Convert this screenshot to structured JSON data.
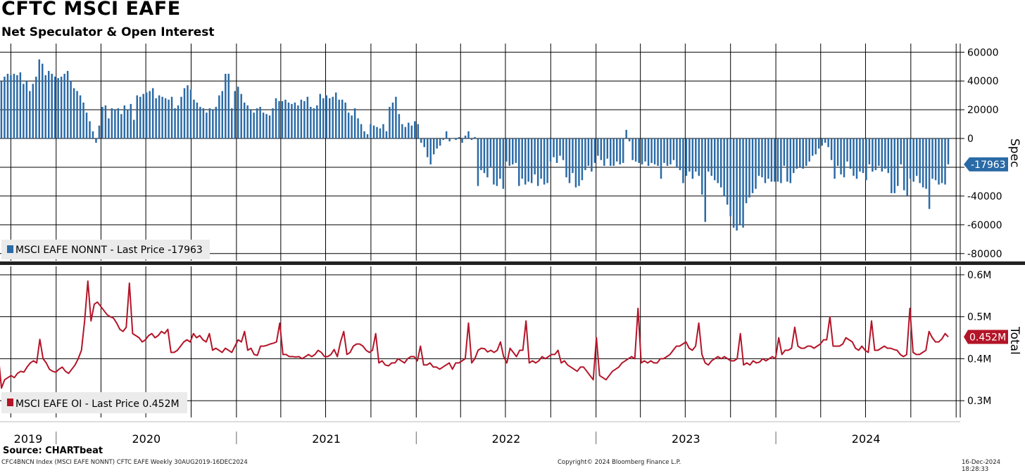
{
  "header": {
    "title": "CFTC MSCI EAFE",
    "subtitle": "Net Speculator & Open Interest"
  },
  "footer": {
    "source": "Source: CHARTbeat",
    "left": "CFC4BNCN Index (MSCI EAFE NONNT) CFTC EAFE  Weekly 30AUG2019-16DEC2024",
    "center": "Copyright© 2024 Bloomberg Finance L.P.",
    "right": "16-Dec-2024 18:28:33"
  },
  "colors": {
    "spec_bar": "#2a6aa6",
    "oi_line": "#b41428",
    "grid": "#000000",
    "legend_bg": "#ebebeb",
    "spec_badge": "#2a6aa6",
    "oi_badge": "#b41428"
  },
  "chart_data": [
    {
      "type": "bar",
      "panel": "top",
      "axis_title": "Spec",
      "legend": "MSCI EAFE NONNT - Last Price -17963",
      "last_value_label": "-17963",
      "ylim": [
        -85000,
        66000
      ],
      "yticks": [
        60000,
        40000,
        20000,
        0,
        -20000,
        -40000,
        -60000,
        -80000
      ],
      "ytick_labels": [
        "60000",
        "40000",
        "20000",
        "0",
        "-20000",
        "-40000",
        "-60000",
        "-80000"
      ],
      "frequency": "weekly",
      "x_start": "2019-08-30",
      "x_end": "2024-12-16",
      "values": [
        40000,
        42000,
        40000,
        43000,
        45000,
        44000,
        45000,
        44000,
        46000,
        38000,
        40000,
        33000,
        38000,
        43000,
        55000,
        52000,
        44000,
        47000,
        45000,
        43000,
        42000,
        43000,
        45000,
        47000,
        40000,
        35000,
        33000,
        30000,
        25000,
        18000,
        12000,
        5000,
        -3000,
        9000,
        22000,
        23000,
        14000,
        21000,
        20000,
        21000,
        17000,
        23000,
        20000,
        24000,
        13000,
        30000,
        29000,
        31000,
        32000,
        33000,
        35000,
        28000,
        30000,
        29000,
        28000,
        27000,
        29000,
        21000,
        23000,
        29000,
        35000,
        37000,
        34000,
        27000,
        25000,
        22000,
        21000,
        18000,
        21000,
        20000,
        22000,
        30000,
        33000,
        45000,
        45000,
        21000,
        33000,
        36000,
        31000,
        25000,
        23000,
        20000,
        18000,
        21000,
        22000,
        18000,
        17000,
        16000,
        21000,
        28000,
        26000,
        26000,
        27000,
        25000,
        24000,
        25000,
        23000,
        27000,
        26000,
        29000,
        22000,
        21000,
        23000,
        31000,
        28000,
        30000,
        28000,
        29000,
        32000,
        27000,
        27000,
        25000,
        18000,
        16000,
        21000,
        14000,
        10000,
        5000,
        3000,
        10000,
        9000,
        8000,
        7000,
        10000,
        5000,
        22000,
        25000,
        29000,
        17000,
        10000,
        8000,
        11000,
        9000,
        12000,
        10000,
        -3000,
        -6000,
        -13000,
        -18000,
        -11000,
        -7000,
        -5000,
        -1000,
        5000,
        -2000,
        0,
        -1000,
        1000,
        -3000,
        2000,
        5000,
        -1000,
        1000,
        -33000,
        -22000,
        -24000,
        -27000,
        -20000,
        -32000,
        -33000,
        -28000,
        -35000,
        -16000,
        -19000,
        -18000,
        -17000,
        -33000,
        -28000,
        -32000,
        -30000,
        -31000,
        -25000,
        -33000,
        -28000,
        -32000,
        -31000,
        -16000,
        -13000,
        -17000,
        -12000,
        -15000,
        -27000,
        -31000,
        -24000,
        -34000,
        -33000,
        -29000,
        -22000,
        -19000,
        -23000,
        -17000,
        -12000,
        -15000,
        -19000,
        -14000,
        -19000,
        -19000,
        -16000,
        -18000,
        -17000,
        6000,
        -2000,
        -15000,
        -16000,
        -17000,
        -18000,
        -16000,
        -19000,
        -17000,
        -18000,
        -19000,
        -28000,
        -17000,
        -19000,
        -18000,
        -15000,
        -20000,
        -22000,
        -31000,
        -26000,
        -23000,
        -28000,
        -23000,
        -26000,
        -39000,
        -58000,
        -23000,
        -26000,
        -29000,
        -31000,
        -34000,
        -40000,
        -46000,
        -54000,
        -62000,
        -64000,
        -60000,
        -62000,
        -45000,
        -41000,
        -38000,
        -35000,
        -26000,
        -27000,
        -31000,
        -28000,
        -30000,
        -30000,
        -30000,
        -31000,
        -19000,
        -30000,
        -31000,
        -24000,
        -21000,
        -20000,
        -21000,
        -19000,
        -16000,
        -12000,
        -11000,
        -7000,
        -5000,
        -3000,
        -6000,
        -15000,
        -28000,
        -19000,
        -25000,
        -27000,
        -16000,
        -21000,
        -26000,
        -28000,
        -23000,
        -24000,
        -29000,
        -18000,
        -23000,
        -22000,
        -19000,
        -23000,
        -21000,
        -24000,
        -38000,
        -38000,
        -33000,
        -18000,
        -36000,
        -40000,
        -28000,
        -30000,
        -26000,
        -31000,
        -34000,
        -35000,
        -49000,
        -28000,
        -29000,
        -32000,
        -31000,
        -32000,
        -17963
      ]
    },
    {
      "type": "line",
      "panel": "bottom",
      "axis_title": "Total",
      "legend": "MSCI EAFE OI - Last Price 0.452M",
      "last_value_label": "0.452M",
      "unit": "M",
      "ylim": [
        0.26,
        0.62
      ],
      "yticks": [
        0.6,
        0.5,
        0.4,
        0.3
      ],
      "ytick_labels": [
        "0.6M",
        "0.5M",
        "0.4M",
        "0.3M"
      ],
      "frequency": "weekly",
      "x_start": "2019-08-30",
      "x_end": "2024-12-16",
      "values": [
        0.33,
        0.41,
        0.33,
        0.35,
        0.355,
        0.36,
        0.355,
        0.365,
        0.37,
        0.368,
        0.38,
        0.39,
        0.395,
        0.39,
        0.446,
        0.4,
        0.39,
        0.375,
        0.37,
        0.368,
        0.375,
        0.38,
        0.37,
        0.365,
        0.375,
        0.385,
        0.4,
        0.42,
        0.49,
        0.585,
        0.49,
        0.53,
        0.535,
        0.525,
        0.515,
        0.505,
        0.5,
        0.497,
        0.485,
        0.47,
        0.465,
        0.475,
        0.58,
        0.46,
        0.455,
        0.45,
        0.44,
        0.445,
        0.455,
        0.46,
        0.45,
        0.455,
        0.465,
        0.46,
        0.47,
        0.415,
        0.415,
        0.42,
        0.43,
        0.44,
        0.445,
        0.44,
        0.46,
        0.45,
        0.455,
        0.445,
        0.44,
        0.46,
        0.42,
        0.425,
        0.42,
        0.415,
        0.425,
        0.42,
        0.415,
        0.43,
        0.445,
        0.44,
        0.465,
        0.42,
        0.425,
        0.41,
        0.408,
        0.43,
        0.43,
        0.432,
        0.435,
        0.437,
        0.44,
        0.485,
        0.41,
        0.41,
        0.405,
        0.405,
        0.404,
        0.405,
        0.4,
        0.405,
        0.41,
        0.405,
        0.41,
        0.42,
        0.415,
        0.405,
        0.405,
        0.41,
        0.422,
        0.405,
        0.44,
        0.465,
        0.41,
        0.415,
        0.43,
        0.435,
        0.435,
        0.43,
        0.42,
        0.415,
        0.42,
        0.46,
        0.39,
        0.395,
        0.385,
        0.383,
        0.39,
        0.39,
        0.4,
        0.395,
        0.39,
        0.4,
        0.405,
        0.405,
        0.395,
        0.43,
        0.385,
        0.385,
        0.39,
        0.38,
        0.38,
        0.375,
        0.38,
        0.385,
        0.39,
        0.375,
        0.39,
        0.39,
        0.395,
        0.4,
        0.485,
        0.39,
        0.4,
        0.42,
        0.425,
        0.424,
        0.416,
        0.42,
        0.415,
        0.42,
        0.44,
        0.405,
        0.39,
        0.425,
        0.415,
        0.405,
        0.42,
        0.42,
        0.49,
        0.39,
        0.395,
        0.39,
        0.395,
        0.405,
        0.4,
        0.405,
        0.41,
        0.41,
        0.42,
        0.39,
        0.395,
        0.385,
        0.38,
        0.375,
        0.37,
        0.38,
        0.38,
        0.37,
        0.36,
        0.35,
        0.45,
        0.36,
        0.355,
        0.35,
        0.36,
        0.37,
        0.375,
        0.38,
        0.39,
        0.395,
        0.4,
        0.405,
        0.4,
        0.52,
        0.39,
        0.395,
        0.39,
        0.395,
        0.39,
        0.39,
        0.4,
        0.4,
        0.405,
        0.41,
        0.42,
        0.43,
        0.43,
        0.435,
        0.44,
        0.425,
        0.42,
        0.43,
        0.485,
        0.41,
        0.39,
        0.385,
        0.395,
        0.4,
        0.405,
        0.4,
        0.405,
        0.4,
        0.395,
        0.395,
        0.4,
        0.46,
        0.385,
        0.39,
        0.385,
        0.395,
        0.39,
        0.392,
        0.4,
        0.395,
        0.4,
        0.405,
        0.4,
        0.45,
        0.41,
        0.42,
        0.42,
        0.425,
        0.475,
        0.43,
        0.425,
        0.425,
        0.43,
        0.43,
        0.425,
        0.43,
        0.435,
        0.445,
        0.445,
        0.5,
        0.43,
        0.43,
        0.43,
        0.435,
        0.45,
        0.445,
        0.44,
        0.425,
        0.42,
        0.43,
        0.42,
        0.415,
        0.49,
        0.42,
        0.42,
        0.425,
        0.43,
        0.425,
        0.425,
        0.422,
        0.42,
        0.41,
        0.405,
        0.41,
        0.52,
        0.415,
        0.41,
        0.41,
        0.415,
        0.42,
        0.465,
        0.45,
        0.44,
        0.44,
        0.447,
        0.46,
        0.452
      ]
    }
  ],
  "x_axis": {
    "years": [
      "2019",
      "2020",
      "2021",
      "2022",
      "2023",
      "2024"
    ]
  }
}
